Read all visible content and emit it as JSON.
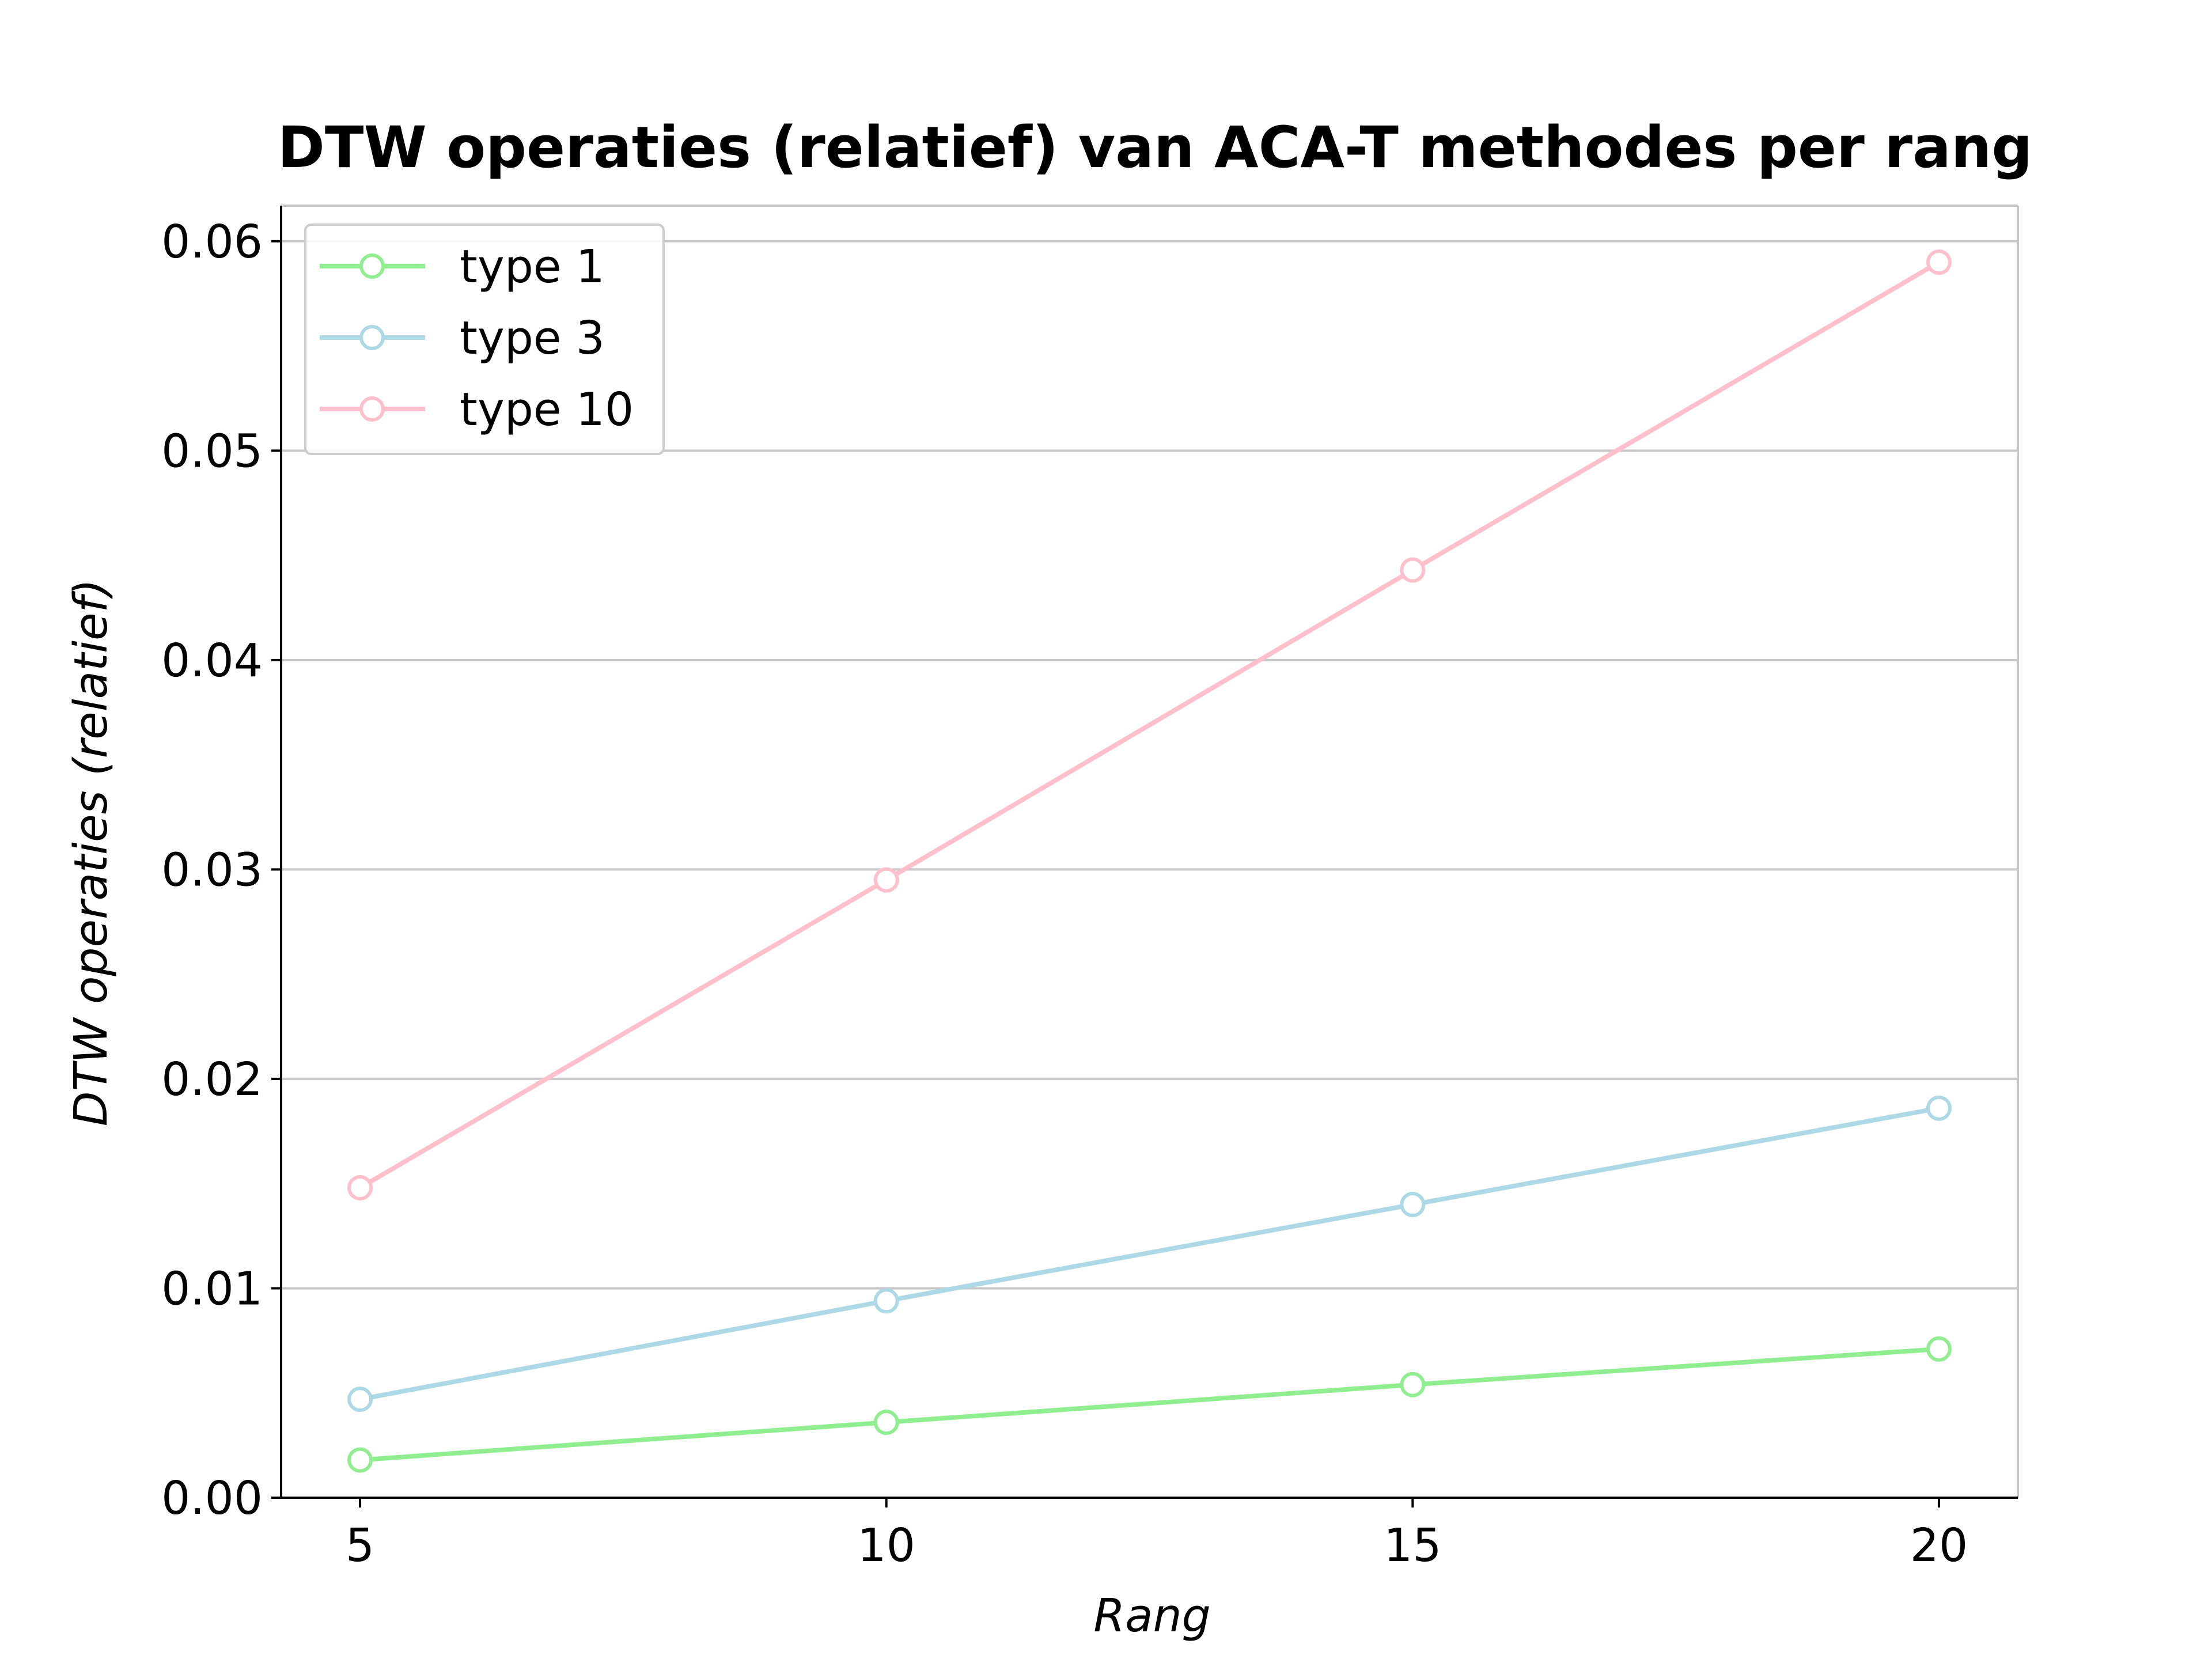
{
  "chart_data": {
    "type": "line",
    "title": "DTW operaties (relatief) van ACA-T methodes per rang",
    "xlabel": "Rang",
    "ylabel": "DTW operaties (relatief)",
    "x": [
      5,
      10,
      15,
      20
    ],
    "xticks": [
      "5",
      "10",
      "15",
      "20"
    ],
    "yticks": [
      "0.00",
      "0.01",
      "0.02",
      "0.03",
      "0.04",
      "0.05",
      "0.06"
    ],
    "xlim": [
      4.25,
      20.75
    ],
    "ylim": [
      0,
      0.0617
    ],
    "grid": "horizontal",
    "legend_position": "top-left",
    "series": [
      {
        "name": "type 1",
        "color": "#90ee90",
        "values": [
          0.0018,
          0.0036,
          0.0054,
          0.0071
        ]
      },
      {
        "name": "type 3",
        "color": "#add8e6",
        "values": [
          0.0047,
          0.0094,
          0.014,
          0.0186
        ]
      },
      {
        "name": "type 10",
        "color": "#ffc0cb",
        "values": [
          0.0148,
          0.0295,
          0.0443,
          0.059
        ]
      }
    ]
  }
}
